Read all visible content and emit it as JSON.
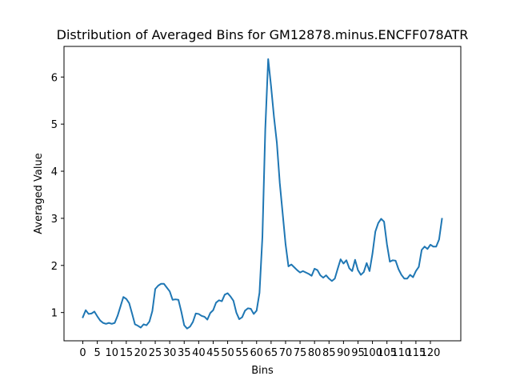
{
  "chart_data": {
    "type": "line",
    "title": "Distribution of Averaged Bins for GM12878.minus.ENCFF078ATR",
    "xlabel": "Bins",
    "ylabel": "Averaged Value",
    "xlim": [
      -6.5,
      130.5
    ],
    "ylim": [
      0.4,
      6.65
    ],
    "xticks": [
      0,
      5,
      10,
      15,
      20,
      25,
      30,
      35,
      40,
      45,
      50,
      55,
      60,
      65,
      70,
      75,
      80,
      85,
      90,
      95,
      100,
      105,
      110,
      115,
      120
    ],
    "yticks": [
      1,
      2,
      3,
      4,
      5,
      6
    ],
    "grid": false,
    "series": [
      {
        "color": "#1f77b4",
        "x": [
          0,
          1,
          2,
          3,
          4,
          5,
          6,
          7,
          8,
          9,
          10,
          11,
          12,
          13,
          14,
          15,
          16,
          17,
          18,
          19,
          20,
          21,
          22,
          23,
          24,
          25,
          26,
          27,
          28,
          29,
          30,
          31,
          32,
          33,
          34,
          35,
          36,
          37,
          38,
          39,
          40,
          41,
          42,
          43,
          44,
          45,
          46,
          47,
          48,
          49,
          50,
          51,
          52,
          53,
          54,
          55,
          56,
          57,
          58,
          59,
          60,
          61,
          62,
          63,
          64,
          65,
          66,
          67,
          68,
          69,
          70,
          71,
          72,
          73,
          74,
          75,
          76,
          77,
          78,
          79,
          80,
          81,
          82,
          83,
          84,
          85,
          86,
          87,
          88,
          89,
          90,
          91,
          92,
          93,
          94,
          95,
          96,
          97,
          98,
          99,
          100,
          101,
          102,
          103,
          104,
          105,
          106,
          107,
          108,
          109,
          110,
          111,
          112,
          113,
          114,
          115,
          116,
          117,
          118,
          119,
          120,
          121,
          122,
          123,
          124
        ],
        "values": [
          0.9,
          1.05,
          0.97,
          0.98,
          1.02,
          0.92,
          0.83,
          0.78,
          0.76,
          0.78,
          0.76,
          0.78,
          0.93,
          1.13,
          1.33,
          1.29,
          1.2,
          0.98,
          0.75,
          0.72,
          0.68,
          0.75,
          0.73,
          0.81,
          1.03,
          1.5,
          1.57,
          1.61,
          1.61,
          1.53,
          1.45,
          1.27,
          1.28,
          1.27,
          1.02,
          0.73,
          0.66,
          0.7,
          0.8,
          0.98,
          0.97,
          0.93,
          0.91,
          0.85,
          0.99,
          1.05,
          1.21,
          1.26,
          1.24,
          1.38,
          1.41,
          1.34,
          1.25,
          1.0,
          0.86,
          0.9,
          1.04,
          1.09,
          1.08,
          0.97,
          1.04,
          1.42,
          2.6,
          4.9,
          6.38,
          5.8,
          5.15,
          4.6,
          3.75,
          3.1,
          2.45,
          1.98,
          2.02,
          1.96,
          1.9,
          1.85,
          1.88,
          1.85,
          1.82,
          1.78,
          1.93,
          1.9,
          1.79,
          1.74,
          1.79,
          1.72,
          1.67,
          1.72,
          1.93,
          2.13,
          2.04,
          2.11,
          1.94,
          1.88,
          2.12,
          1.9,
          1.8,
          1.86,
          2.05,
          1.88,
          2.25,
          2.72,
          2.9,
          2.99,
          2.93,
          2.45,
          2.08,
          2.11,
          2.1,
          1.92,
          1.8,
          1.72,
          1.72,
          1.8,
          1.75,
          1.88,
          1.97,
          2.33,
          2.4,
          2.35,
          2.44,
          2.4,
          2.4,
          2.55,
          2.99
        ]
      }
    ]
  }
}
